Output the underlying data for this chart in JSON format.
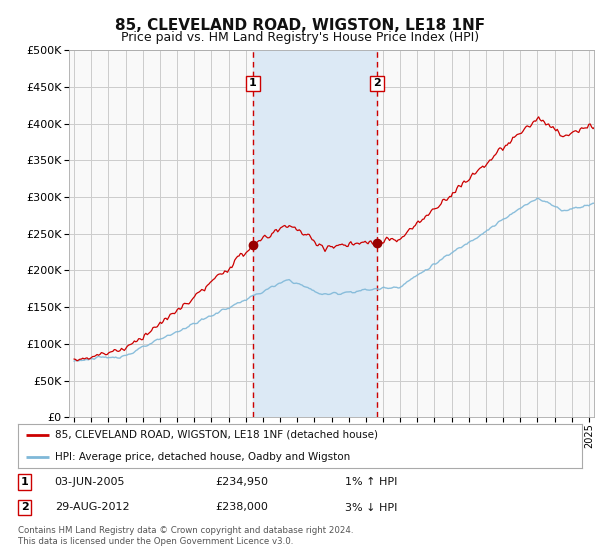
{
  "title": "85, CLEVELAND ROAD, WIGSTON, LE18 1NF",
  "subtitle": "Price paid vs. HM Land Registry's House Price Index (HPI)",
  "title_fontsize": 11,
  "subtitle_fontsize": 9,
  "bg_color": "#ffffff",
  "plot_bg_color": "#f9f9f9",
  "grid_color": "#cccccc",
  "ylim": [
    0,
    500000
  ],
  "yticks": [
    0,
    50000,
    100000,
    150000,
    200000,
    250000,
    300000,
    350000,
    400000,
    450000,
    500000
  ],
  "xlim_start": 1994.7,
  "xlim_end": 2025.3,
  "sale1": {
    "date": "2005-06-03",
    "price": 234950,
    "label": "1",
    "year": 2005.42
  },
  "sale2": {
    "date": "2012-08-29",
    "price": 238000,
    "label": "2",
    "year": 2012.66
  },
  "shade_start": 2005.42,
  "shade_end": 2012.66,
  "shade_color": "#dce9f5",
  "vline_color": "#cc0000",
  "marker_color": "#990000",
  "red_line_color": "#cc0000",
  "blue_line_color": "#7fb8d8",
  "legend_label_red": "85, CLEVELAND ROAD, WIGSTON, LE18 1NF (detached house)",
  "legend_label_blue": "HPI: Average price, detached house, Oadby and Wigston",
  "annotation1_num": "1",
  "annotation1_date": "03-JUN-2005",
  "annotation1_price": "£234,950",
  "annotation1_hpi": "1% ↑ HPI",
  "annotation2_num": "2",
  "annotation2_date": "29-AUG-2012",
  "annotation2_price": "£238,000",
  "annotation2_hpi": "3% ↓ HPI",
  "footer": "Contains HM Land Registry data © Crown copyright and database right 2024.\nThis data is licensed under the Open Government Licence v3.0."
}
